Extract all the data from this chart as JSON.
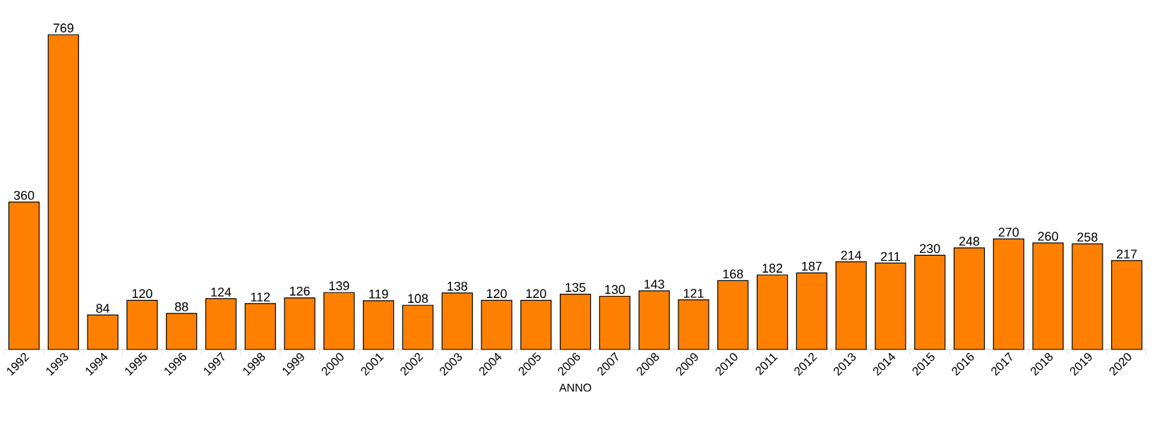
{
  "chart_data": {
    "type": "bar",
    "xlabel": "ANNO",
    "categories": [
      "1992",
      "1993",
      "1994",
      "1995",
      "1996",
      "1997",
      "1998",
      "1999",
      "2000",
      "2001",
      "2002",
      "2003",
      "2004",
      "2005",
      "2006",
      "2007",
      "2008",
      "2009",
      "2010",
      "2011",
      "2012",
      "2013",
      "2014",
      "2015",
      "2016",
      "2017",
      "2018",
      "2019",
      "2020"
    ],
    "values": [
      360,
      769,
      84,
      120,
      88,
      124,
      112,
      126,
      139,
      119,
      108,
      138,
      120,
      120,
      135,
      130,
      143,
      121,
      168,
      182,
      187,
      214,
      211,
      230,
      248,
      270,
      260,
      258,
      217
    ],
    "color": "#ff8000",
    "data_labels": true
  }
}
